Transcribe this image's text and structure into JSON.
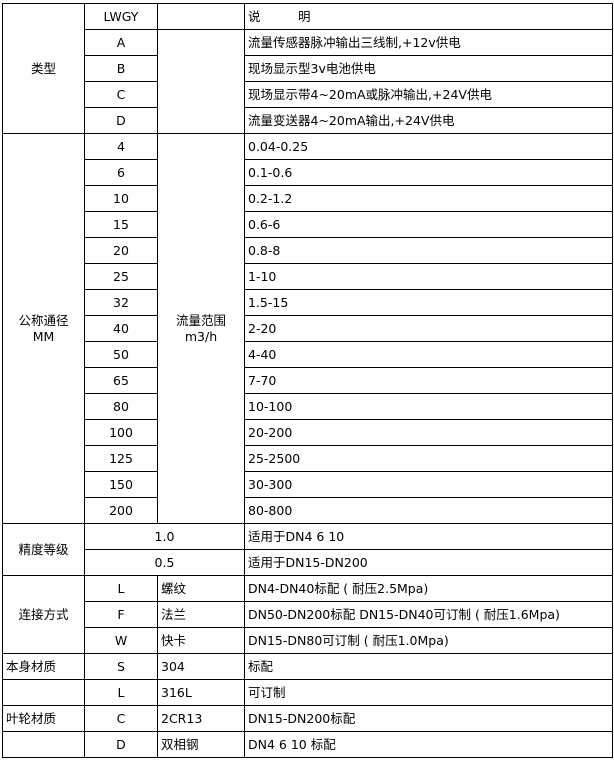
{
  "header": {
    "code": "LWGY",
    "desc": "说　　　明"
  },
  "type": {
    "label": "类型",
    "rows": [
      {
        "code": "A",
        "desc": "流量传感器脉冲输出三线制,+12v供电"
      },
      {
        "code": "B",
        "desc": "现场显示型3v电池供电"
      },
      {
        "code": "C",
        "desc": "现场显示带4~20mA或脉冲输出,+24V供电"
      },
      {
        "code": "D",
        "desc": "流量变送器4~20mA输出,+24V供电"
      }
    ]
  },
  "diameter": {
    "label": "公称通径",
    "unit": "MM",
    "range_label": "流量范围",
    "range_unit": "m3/h",
    "rows": [
      {
        "dn": "4",
        "range": "0.04-0.25"
      },
      {
        "dn": "6",
        "range": "0.1-0.6"
      },
      {
        "dn": "10",
        "range": "0.2-1.2"
      },
      {
        "dn": "15",
        "range": "0.6-6"
      },
      {
        "dn": "20",
        "range": "0.8-8"
      },
      {
        "dn": "25",
        "range": "1-10"
      },
      {
        "dn": "32",
        "range": "1.5-15"
      },
      {
        "dn": "40",
        "range": "2-20"
      },
      {
        "dn": "50",
        "range": "4-40"
      },
      {
        "dn": "65",
        "range": "7-70"
      },
      {
        "dn": "80",
        "range": "10-100"
      },
      {
        "dn": "100",
        "range": "20-200"
      },
      {
        "dn": "125",
        "range": "25-2500"
      },
      {
        "dn": "150",
        "range": "30-300"
      },
      {
        "dn": "200",
        "range": "80-800"
      }
    ]
  },
  "accuracy": {
    "label": "精度等级",
    "rows": [
      {
        "grade": "1.0",
        "desc": "适用于DN4  6  10"
      },
      {
        "grade": "0.5",
        "desc": "适用于DN15-DN200"
      }
    ]
  },
  "connection": {
    "label": "连接方式",
    "rows": [
      {
        "code": "L",
        "name": "螺纹",
        "desc": "DN4-DN40标配 ( 耐压2.5Mpa)"
      },
      {
        "code": "F",
        "name": "法兰",
        "desc": "DN50-DN200标配 DN15-DN40可订制 ( 耐压1.6Mpa)"
      },
      {
        "code": "W",
        "name": "快卡",
        "desc": "DN15-DN80可订制  ( 耐压1.0Mpa)"
      }
    ]
  },
  "materials": [
    {
      "label": "本身材质",
      "code": "S",
      "name": "304",
      "desc": "标配"
    },
    {
      "label": "",
      "code": "L",
      "name": "316L",
      "desc": "可订制"
    },
    {
      "label": "叶轮材质",
      "code": "C",
      "name": "2CR13",
      "desc": "DN15-DN200标配"
    },
    {
      "label": "",
      "code": "D",
      "name": "双相钢",
      "desc": "DN4 6 10 标配"
    }
  ]
}
